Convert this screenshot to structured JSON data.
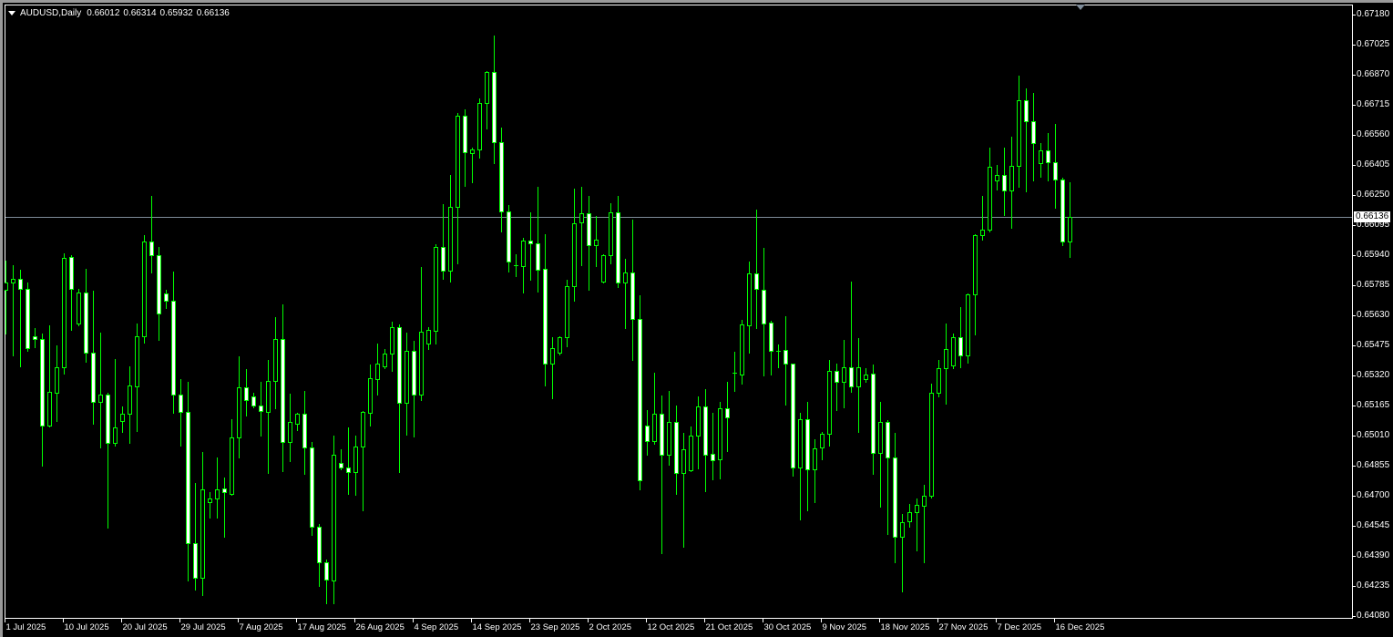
{
  "header": {
    "symbol_timeframe": "AUDUSD,Daily",
    "open": "0.66012",
    "high": "0.66314",
    "low": "0.65932",
    "close": "0.66136"
  },
  "chart_data": {
    "type": "candlestick",
    "title": "AUDUSD,Daily",
    "current_price": "0.66136",
    "ylim": [
      0.6408,
      0.6718
    ],
    "y_ticks": [
      "0.67180",
      "0.67025",
      "0.66870",
      "0.66715",
      "0.66560",
      "0.66405",
      "0.66250",
      "0.66095",
      "0.65940",
      "0.65785",
      "0.65630",
      "0.65475",
      "0.65320",
      "0.65165",
      "0.65010",
      "0.64855",
      "0.64700",
      "0.64545",
      "0.64390",
      "0.64235",
      "0.64080"
    ],
    "x_tick_labels": [
      "1 Jul 2025",
      "10 Jul 2025",
      "20 Jul 2025",
      "29 Jul 2025",
      "7 Aug 2025",
      "17 Aug 2025",
      "26 Aug 2025",
      "4 Sep 2025",
      "14 Sep 2025",
      "23 Sep 2025",
      "2 Oct 2025",
      "12 Oct 2025",
      "21 Oct 2025",
      "30 Oct 2025",
      "9 Nov 2025",
      "18 Nov 2025",
      "27 Nov 2025",
      "7 Dec 2025",
      "16 Dec 2025"
    ],
    "colors": {
      "background": "#000000",
      "candle_outline": "#00ff00",
      "bear_body": "#ffffff",
      "bull_body": "#000000",
      "price_line": "#7f8c99",
      "axis": "#ffffff"
    },
    "ohlc": [
      [
        0.65761,
        0.65912,
        0.65536,
        0.65799
      ],
      [
        0.65799,
        0.65887,
        0.65422,
        0.65817
      ],
      [
        0.65817,
        0.65864,
        0.65366,
        0.65765
      ],
      [
        0.65765,
        0.65798,
        0.65446,
        0.6546
      ],
      [
        0.65521,
        0.65563,
        0.65464,
        0.65507
      ],
      [
        0.65507,
        0.65535,
        0.64853,
        0.6506
      ],
      [
        0.6506,
        0.65577,
        0.65055,
        0.65234
      ],
      [
        0.65229,
        0.65474,
        0.65084,
        0.65361
      ],
      [
        0.65361,
        0.65948,
        0.65328,
        0.65925
      ],
      [
        0.6593,
        0.65939,
        0.65554,
        0.65765
      ],
      [
        0.65587,
        0.65765,
        0.6558,
        0.65746
      ],
      [
        0.65746,
        0.65869,
        0.65389,
        0.65436
      ],
      [
        0.65436,
        0.65756,
        0.6507,
        0.65182
      ],
      [
        0.65182,
        0.6554,
        0.64947,
        0.6522
      ],
      [
        0.6522,
        0.65229,
        0.64534,
        0.64971
      ],
      [
        0.64971,
        0.65403,
        0.64957,
        0.65051
      ],
      [
        0.65084,
        0.65159,
        0.65027,
        0.65121
      ],
      [
        0.65121,
        0.65366,
        0.64971,
        0.65267
      ],
      [
        0.65262,
        0.65587,
        0.65032,
        0.65521
      ],
      [
        0.65521,
        0.66042,
        0.65488,
        0.6601
      ],
      [
        0.6601,
        0.66245,
        0.6585,
        0.65939
      ],
      [
        0.65939,
        0.65981,
        0.65502,
        0.65638
      ],
      [
        0.65742,
        0.6576,
        0.65666,
        0.65704
      ],
      [
        0.65704,
        0.65854,
        0.65126,
        0.6522
      ],
      [
        0.6522,
        0.653,
        0.64957,
        0.65131
      ],
      [
        0.65131,
        0.65286,
        0.64261,
        0.64454
      ],
      [
        0.64454,
        0.64764,
        0.64214,
        0.64275
      ],
      [
        0.64275,
        0.64924,
        0.64186,
        0.64731
      ],
      [
        0.64665,
        0.64717,
        0.64585,
        0.64684
      ],
      [
        0.64684,
        0.64896,
        0.64585,
        0.64731
      ],
      [
        0.64736,
        0.64792,
        0.64487,
        0.64717
      ],
      [
        0.64708,
        0.65093,
        0.64703,
        0.64999
      ],
      [
        0.64999,
        0.65417,
        0.64896,
        0.65258
      ],
      [
        0.65258,
        0.65352,
        0.65112,
        0.65192
      ],
      [
        0.65211,
        0.65229,
        0.65154,
        0.65164
      ],
      [
        0.65164,
        0.65286,
        0.65008,
        0.65135
      ],
      [
        0.65131,
        0.65399,
        0.64816,
        0.6529
      ],
      [
        0.6529,
        0.65619,
        0.65149,
        0.65507
      ],
      [
        0.65507,
        0.65685,
        0.64825,
        0.64976
      ],
      [
        0.64976,
        0.65225,
        0.64877,
        0.65079
      ],
      [
        0.6507,
        0.65126,
        0.65037,
        0.65121
      ],
      [
        0.65121,
        0.65239,
        0.64811,
        0.64947
      ],
      [
        0.64947,
        0.64976,
        0.64496,
        0.64538
      ],
      [
        0.64538,
        0.64553,
        0.64233,
        0.64355
      ],
      [
        0.64355,
        0.64369,
        0.64144,
        0.64266
      ],
      [
        0.64261,
        0.65008,
        0.64144,
        0.6491
      ],
      [
        0.64867,
        0.64938,
        0.64835,
        0.64844
      ],
      [
        0.64844,
        0.65051,
        0.64708,
        0.6482
      ],
      [
        0.6482,
        0.65008,
        0.64703,
        0.64952
      ],
      [
        0.64952,
        0.65135,
        0.64623,
        0.65131
      ],
      [
        0.65126,
        0.65375,
        0.6506,
        0.65305
      ],
      [
        0.653,
        0.65483,
        0.6522,
        0.6538
      ],
      [
        0.65366,
        0.65455,
        0.65356,
        0.65431
      ],
      [
        0.65431,
        0.65596,
        0.65342,
        0.65568
      ],
      [
        0.65568,
        0.65582,
        0.6482,
        0.65178
      ],
      [
        0.65178,
        0.6554,
        0.65013,
        0.65446
      ],
      [
        0.65446,
        0.65497,
        0.65004,
        0.6522
      ],
      [
        0.6522,
        0.65878,
        0.65192,
        0.65544
      ],
      [
        0.65483,
        0.65568,
        0.65455,
        0.65554
      ],
      [
        0.65549,
        0.65995,
        0.65483,
        0.65981
      ],
      [
        0.65981,
        0.66202,
        0.65817,
        0.65859
      ],
      [
        0.65859,
        0.66353,
        0.65803,
        0.66188
      ],
      [
        0.66188,
        0.66672,
        0.65897,
        0.66658
      ],
      [
        0.66658,
        0.66691,
        0.66296,
        0.6647
      ],
      [
        0.66465,
        0.66494,
        0.66315,
        0.66484
      ],
      [
        0.66484,
        0.66747,
        0.66442,
        0.66724
      ],
      [
        0.66724,
        0.66888,
        0.66592,
        0.66884
      ],
      [
        0.66884,
        0.67072,
        0.66414,
        0.66522
      ],
      [
        0.66522,
        0.66597,
        0.66061,
        0.66165
      ],
      [
        0.66165,
        0.66198,
        0.65854,
        0.65906
      ],
      [
        0.65887,
        0.65944,
        0.65831,
        0.65887
      ],
      [
        0.65883,
        0.66028,
        0.65746,
        0.66014
      ],
      [
        0.66014,
        0.6616,
        0.65812,
        0.66
      ],
      [
        0.66,
        0.66292,
        0.65751,
        0.65864
      ],
      [
        0.65869,
        0.66047,
        0.65267,
        0.6538
      ],
      [
        0.6538,
        0.65516,
        0.65201,
        0.6546
      ],
      [
        0.65436,
        0.65521,
        0.6543,
        0.65516
      ],
      [
        0.65516,
        0.65812,
        0.65469,
        0.65779
      ],
      [
        0.65779,
        0.66282,
        0.65704,
        0.66104
      ],
      [
        0.66108,
        0.66292,
        0.65887,
        0.66155
      ],
      [
        0.66155,
        0.66245,
        0.6576,
        0.65991
      ],
      [
        0.65991,
        0.66141,
        0.65883,
        0.66019
      ],
      [
        0.65803,
        0.65944,
        0.658,
        0.65939
      ],
      [
        0.65939,
        0.66207,
        0.65897,
        0.6616
      ],
      [
        0.6616,
        0.66245,
        0.65775,
        0.65799
      ],
      [
        0.65799,
        0.6592,
        0.65563,
        0.6585
      ],
      [
        0.6585,
        0.66122,
        0.65399,
        0.6561
      ],
      [
        0.6561,
        0.65732,
        0.64731,
        0.64778
      ],
      [
        0.6506,
        0.6514,
        0.6491,
        0.6498
      ],
      [
        0.6498,
        0.65333,
        0.64966,
        0.65121
      ],
      [
        0.65121,
        0.65215,
        0.64402,
        0.6491
      ],
      [
        0.6491,
        0.65239,
        0.64858,
        0.65079
      ],
      [
        0.65079,
        0.65164,
        0.64708,
        0.64816
      ],
      [
        0.64816,
        0.65023,
        0.64435,
        0.64938
      ],
      [
        0.6483,
        0.65055,
        0.64825,
        0.65008
      ],
      [
        0.65008,
        0.65211,
        0.64839,
        0.65159
      ],
      [
        0.65159,
        0.65248,
        0.64722,
        0.6491
      ],
      [
        0.64914,
        0.65126,
        0.64783,
        0.64882
      ],
      [
        0.64886,
        0.65182,
        0.64788,
        0.65149
      ],
      [
        0.65149,
        0.65286,
        0.64929,
        0.65102
      ],
      [
        0.65333,
        0.65441,
        0.65239,
        0.65333
      ],
      [
        0.65323,
        0.65605,
        0.65276,
        0.65582
      ],
      [
        0.65577,
        0.65906,
        0.65436,
        0.65845
      ],
      [
        0.65845,
        0.66174,
        0.65563,
        0.65765
      ],
      [
        0.6576,
        0.65977,
        0.65319,
        0.65587
      ],
      [
        0.65591,
        0.65601,
        0.65323,
        0.65446
      ],
      [
        0.65446,
        0.65479,
        0.65361,
        0.65446
      ],
      [
        0.6545,
        0.65624,
        0.65168,
        0.6538
      ],
      [
        0.6538,
        0.6538,
        0.64802,
        0.64844
      ],
      [
        0.64844,
        0.65126,
        0.64576,
        0.65093
      ],
      [
        0.65093,
        0.65182,
        0.64623,
        0.64835
      ],
      [
        0.64835,
        0.6499,
        0.64665,
        0.64943
      ],
      [
        0.64947,
        0.65027,
        0.64886,
        0.65018
      ],
      [
        0.65018,
        0.65399,
        0.64957,
        0.65342
      ],
      [
        0.65342,
        0.6538,
        0.6514,
        0.65286
      ],
      [
        0.65286,
        0.65502,
        0.65154,
        0.65361
      ],
      [
        0.65361,
        0.65803,
        0.65234,
        0.65262
      ],
      [
        0.65262,
        0.65511,
        0.65027,
        0.65361
      ],
      [
        0.653,
        0.65356,
        0.65286,
        0.65323
      ],
      [
        0.65328,
        0.65375,
        0.64811,
        0.64919
      ],
      [
        0.64919,
        0.65182,
        0.64642,
        0.65079
      ],
      [
        0.65079,
        0.65088,
        0.64501,
        0.64896
      ],
      [
        0.64896,
        0.65023,
        0.64355,
        0.64487
      ],
      [
        0.64487,
        0.64604,
        0.64209,
        0.64562
      ],
      [
        0.64567,
        0.64656,
        0.64538,
        0.64614
      ],
      [
        0.64614,
        0.64684,
        0.64416,
        0.64651
      ],
      [
        0.64647,
        0.64755,
        0.64355,
        0.64698
      ],
      [
        0.64698,
        0.65276,
        0.64689,
        0.65229
      ],
      [
        0.65229,
        0.65399,
        0.65211,
        0.65356
      ],
      [
        0.65356,
        0.65587,
        0.65173,
        0.65455
      ],
      [
        0.6537,
        0.65535,
        0.65356,
        0.65516
      ],
      [
        0.65516,
        0.65671,
        0.65361,
        0.65422
      ],
      [
        0.65422,
        0.65742,
        0.65384,
        0.65737
      ],
      [
        0.65737,
        0.66047,
        0.6553,
        0.66042
      ],
      [
        0.66042,
        0.66245,
        0.66019,
        0.66071
      ],
      [
        0.66071,
        0.66494,
        0.66061,
        0.66395
      ],
      [
        0.66324,
        0.66404,
        0.66277,
        0.66353
      ],
      [
        0.66353,
        0.66494,
        0.66146,
        0.66273
      ],
      [
        0.66273,
        0.6655,
        0.6608,
        0.664
      ],
      [
        0.664,
        0.66865,
        0.66292,
        0.66738
      ],
      [
        0.66738,
        0.66799,
        0.66268,
        0.6663
      ],
      [
        0.6663,
        0.66776,
        0.66324,
        0.66517
      ],
      [
        0.66414,
        0.66517,
        0.66343,
        0.6648
      ],
      [
        0.6648,
        0.66569,
        0.66324,
        0.66418
      ],
      [
        0.66418,
        0.66616,
        0.66183,
        0.66329
      ],
      [
        0.66329,
        0.66339,
        0.65991,
        0.6601
      ],
      [
        0.66012,
        0.66314,
        0.65932,
        0.66136
      ]
    ]
  }
}
